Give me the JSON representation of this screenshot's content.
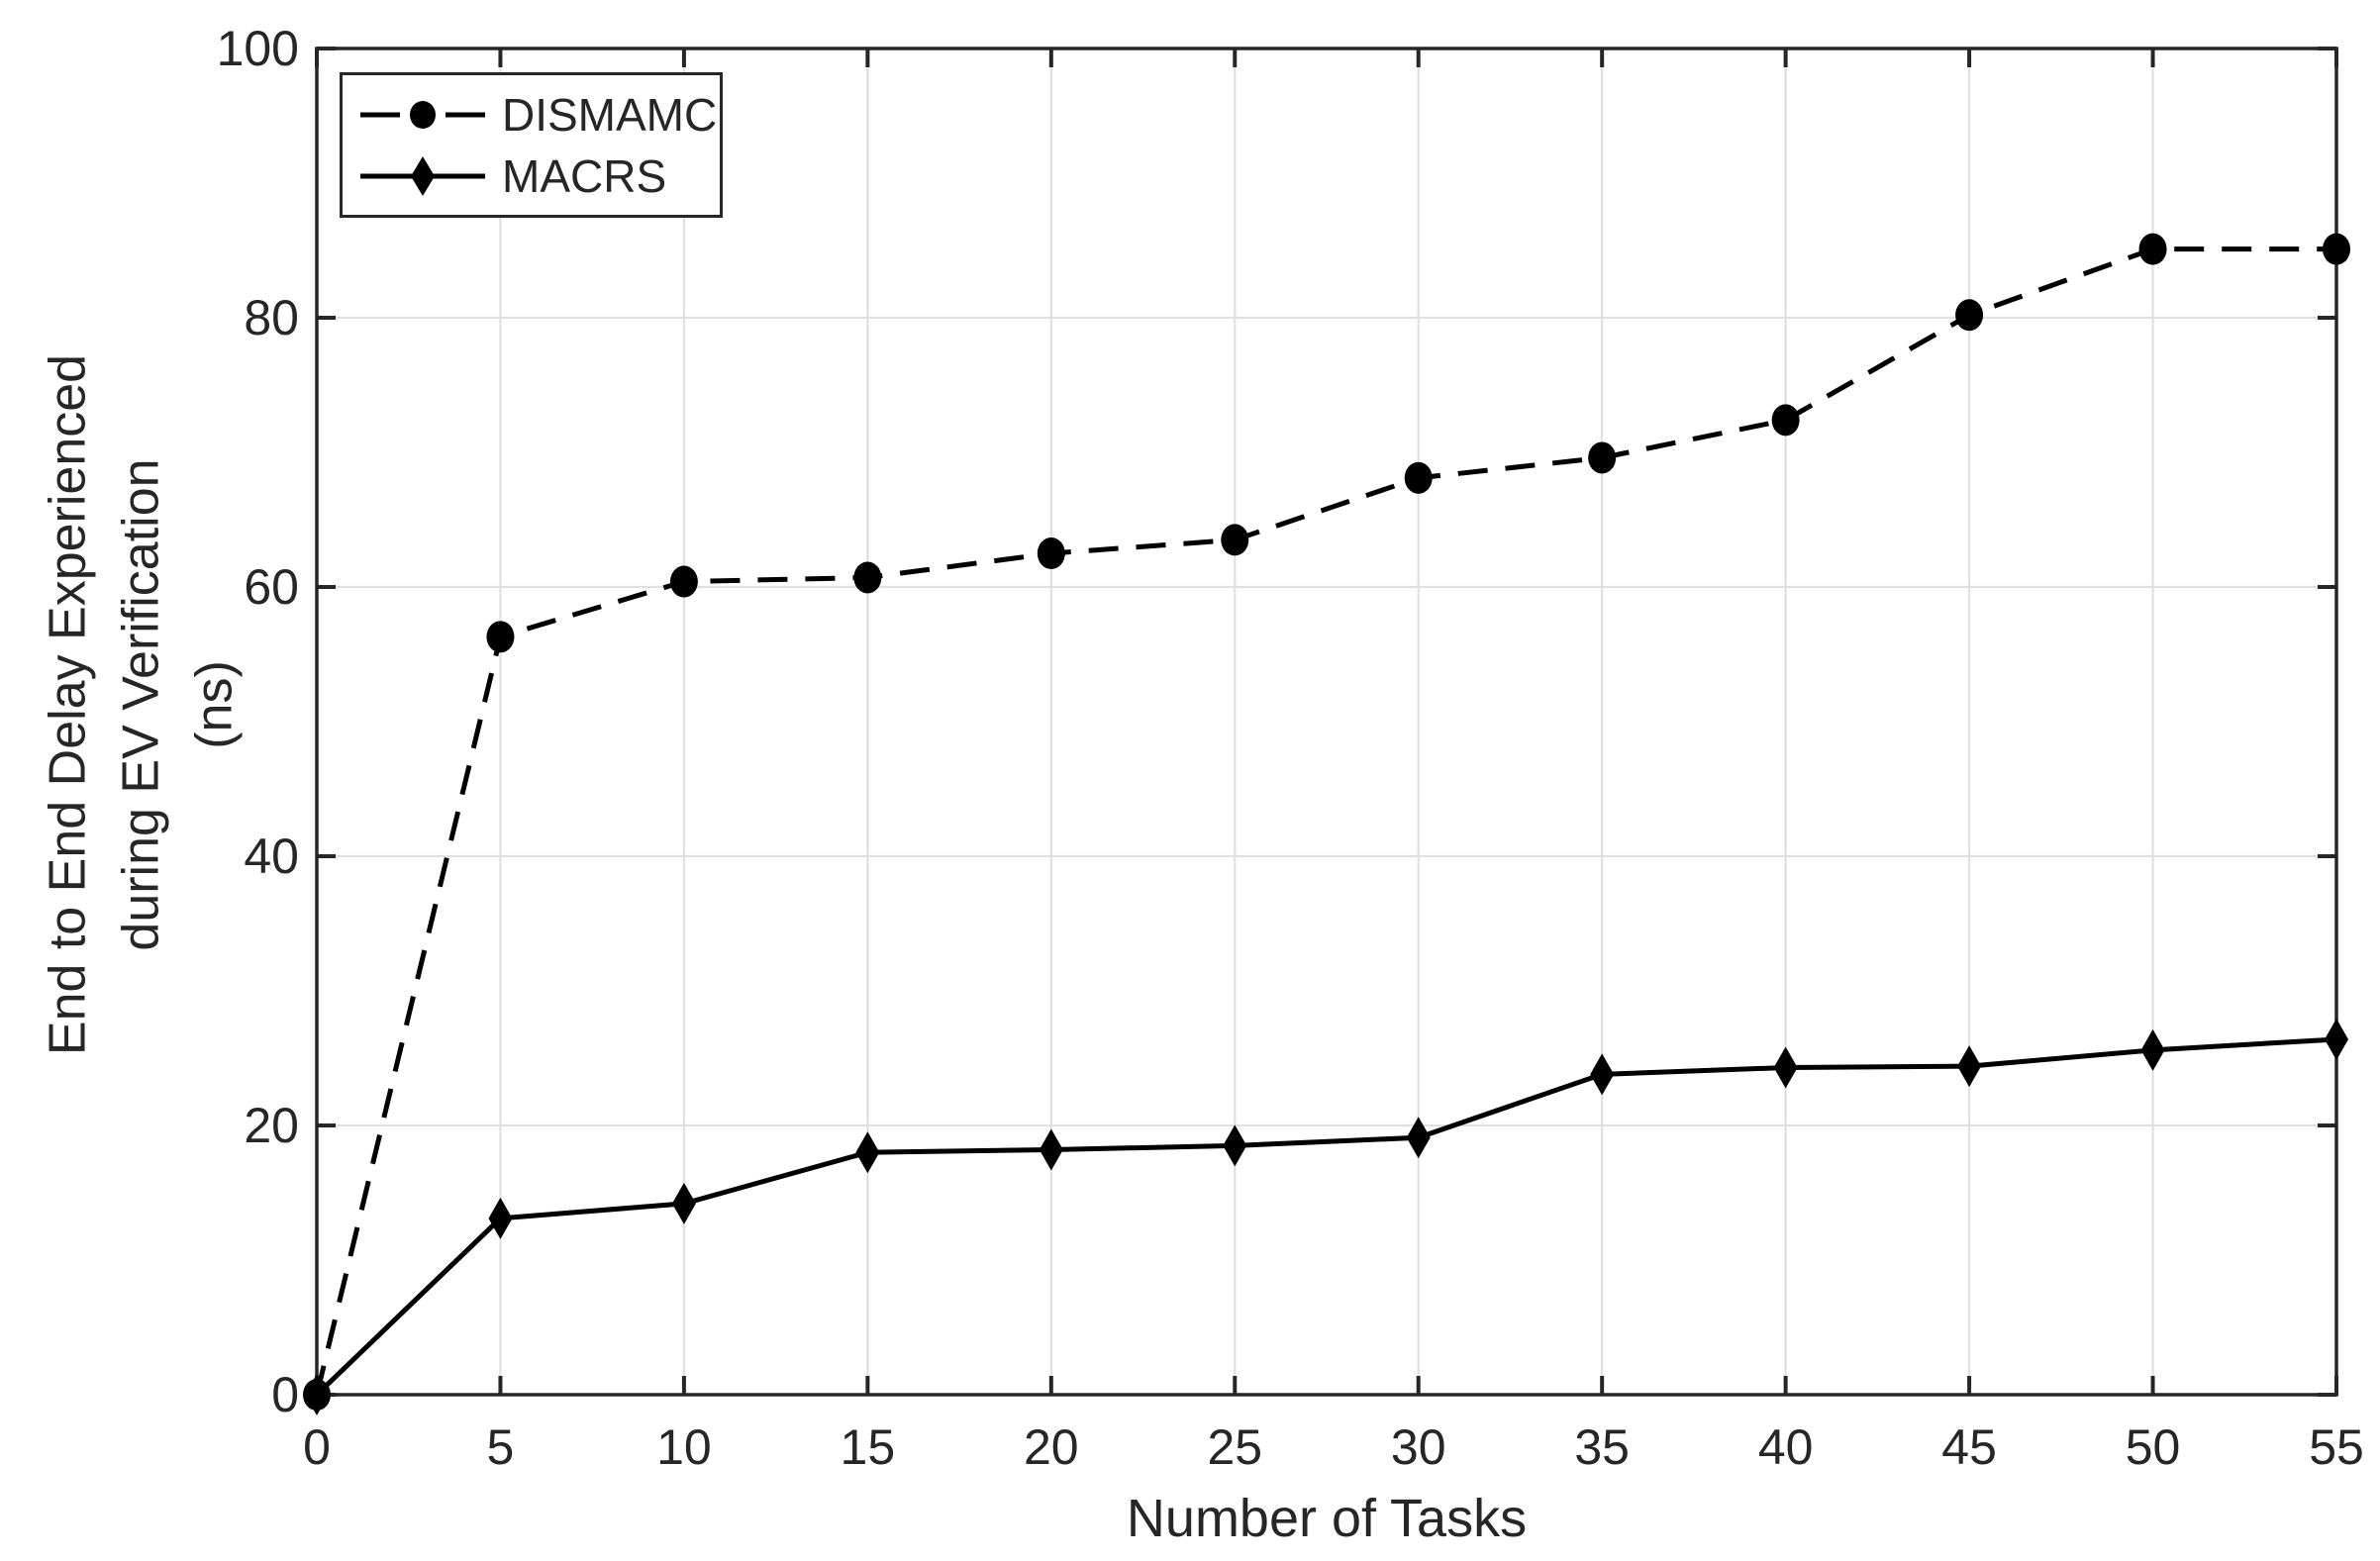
{
  "figure": {
    "background": "#ffffff",
    "axis_color": "#262626",
    "grid_color": "#e0e0e0",
    "series_color": "#000000"
  },
  "chart_data": {
    "type": "line",
    "xlabel": "Number of Tasks",
    "ylabel_lines": [
      "End to End Delay Experienced",
      "during EV Verification",
      "(ns)"
    ],
    "xlim": [
      0,
      55
    ],
    "ylim": [
      0,
      100
    ],
    "x_ticks": [
      0,
      5,
      10,
      15,
      20,
      25,
      30,
      35,
      40,
      45,
      50,
      55
    ],
    "y_ticks": [
      0,
      20,
      40,
      60,
      80,
      100
    ],
    "grid": true,
    "legend_position": "top-left",
    "x": [
      0,
      5,
      10,
      15,
      20,
      25,
      30,
      35,
      40,
      45,
      50,
      55
    ],
    "series": [
      {
        "name": "DISMAMC",
        "line_style": "dashed",
        "marker": "circle",
        "color": "#000000",
        "values": [
          0,
          56.3,
          60.4,
          60.7,
          62.5,
          63.5,
          68.1,
          69.6,
          72.4,
          80.2,
          85.1,
          85.1
        ]
      },
      {
        "name": "MACRS",
        "line_style": "solid",
        "marker": "diamond",
        "color": "#000000",
        "values": [
          0,
          13.1,
          14.2,
          18,
          18.2,
          18.5,
          19.1,
          23.8,
          24.3,
          24.4,
          25.6,
          26.4
        ]
      }
    ]
  },
  "legend": {
    "items": [
      {
        "label": "DISMAMC"
      },
      {
        "label": "MACRS"
      }
    ]
  }
}
